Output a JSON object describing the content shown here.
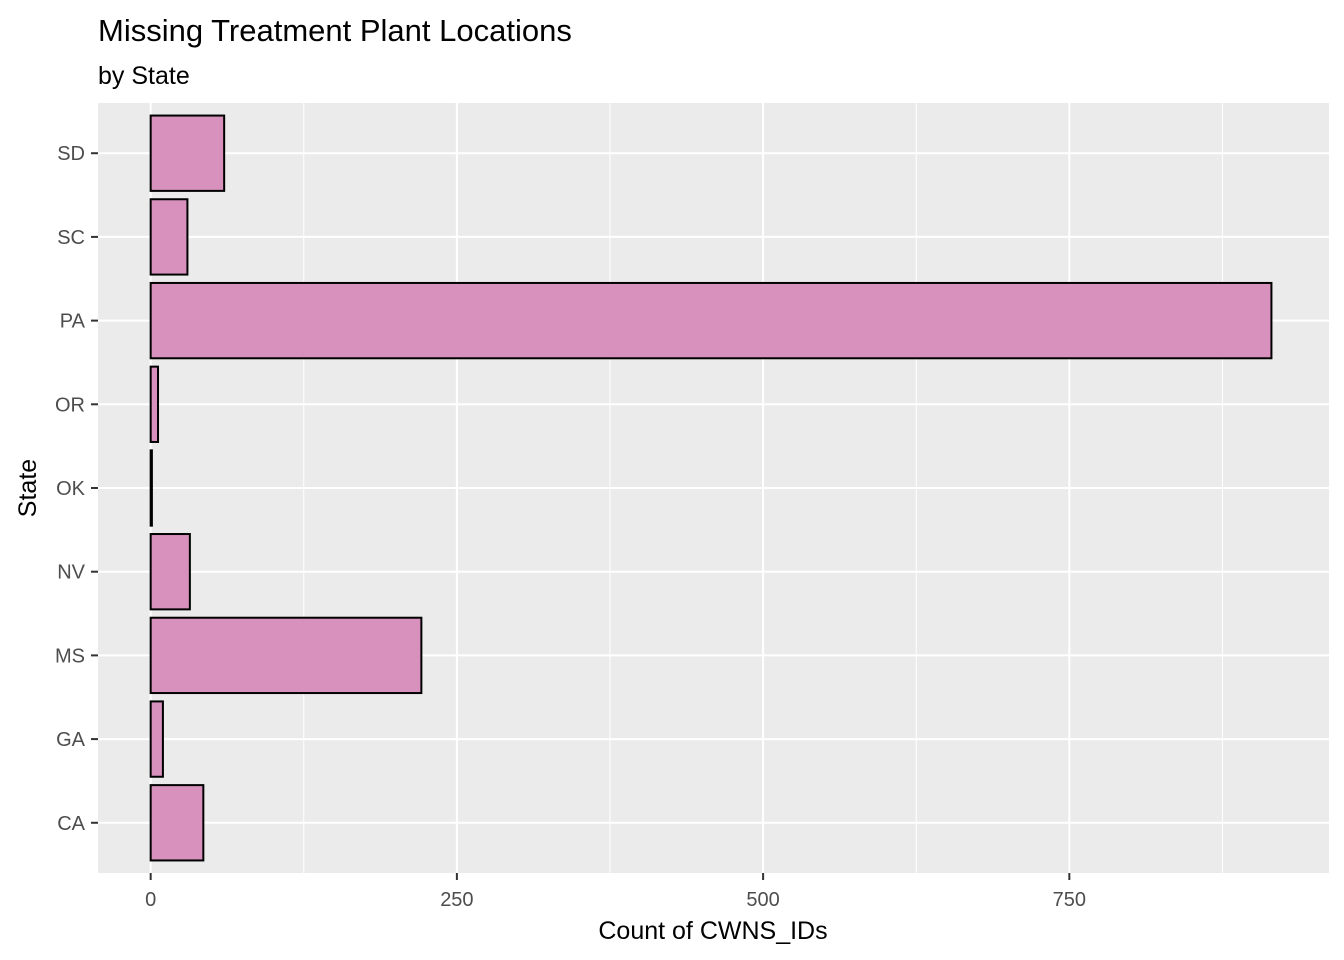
{
  "chart_data": {
    "type": "bar",
    "orientation": "horizontal",
    "title": "Missing Treatment Plant Locations",
    "subtitle": "by State",
    "xlabel": "Count of CWNS_IDs",
    "ylabel": "State",
    "categories": [
      "CA",
      "GA",
      "MS",
      "NV",
      "OK",
      "OR",
      "PA",
      "SC",
      "SD"
    ],
    "values": [
      43,
      10,
      221,
      32,
      1,
      6,
      915,
      30,
      60
    ],
    "xlim": [
      -43,
      962
    ],
    "xticks": [
      0,
      250,
      500,
      750
    ],
    "xtick_labels": [
      "0",
      "250",
      "500",
      "750"
    ],
    "grid": true,
    "colors": {
      "bar_fill": "#d891bc",
      "bar_stroke": "#000000",
      "panel_bg": "#ebebeb",
      "grid": "#ffffff",
      "tick": "#333333"
    }
  }
}
